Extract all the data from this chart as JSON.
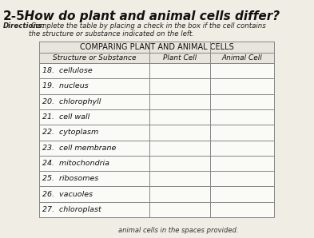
{
  "title_num": "2-5",
  "title_text": "  How do plant and animal cells differ?",
  "directions_bold": "Directions:",
  "directions_rest": " Complete the table by placing a check in the box if the cell contains\nthe structure or substance indicated on the left.",
  "table_title": "COMPARING PLANT AND ANIMAL CELLS",
  "col_headers": [
    "Structure or Substance",
    "Plant Cell",
    "Animal Cell"
  ],
  "rows": [
    "18.  cellulose",
    "19.  nucleus",
    "20.  chlorophyll",
    "21.  cell wall",
    "22.  cytoplasm",
    "23.  cell membrane",
    "24.  mitochondria",
    "25.  ribosomes",
    "26.  vacuoles",
    "27.  chloroplast"
  ],
  "footer": "animal cells in the spaces provided.",
  "bg_color": "#f0ede4",
  "table_bg": "#f5f3ee",
  "cell_bg_even": "#f7f5f0",
  "cell_bg_odd": "#f0ede6",
  "border_color": "#888888",
  "title_fontsize": 11,
  "dir_fontsize": 6.2,
  "table_title_fontsize": 7,
  "header_fontsize": 6.5,
  "row_fontsize": 6.8,
  "footer_fontsize": 6
}
